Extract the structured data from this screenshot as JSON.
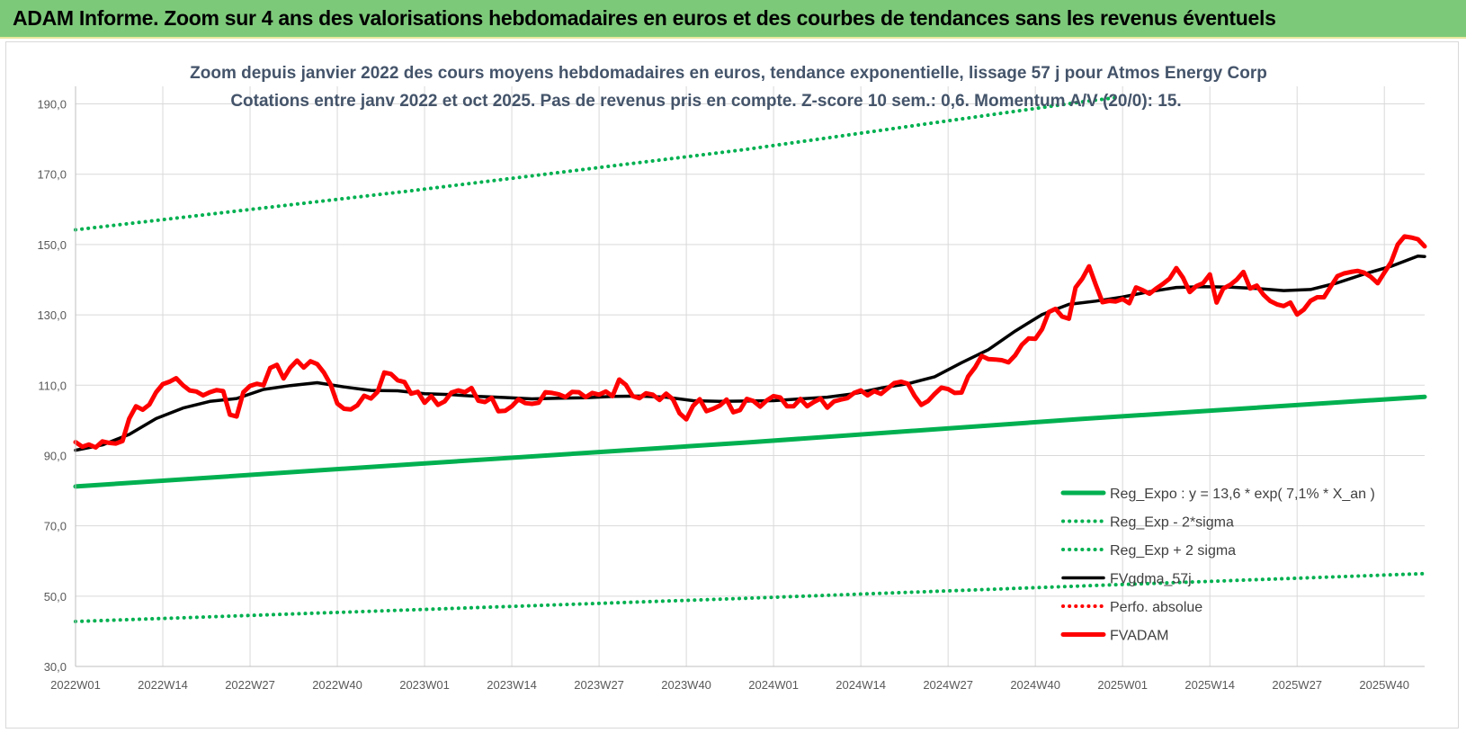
{
  "header": {
    "title": "ADAM Informe. Zoom sur 4 ans des valorisations hebdomadaires en euros et des courbes de tendances sans les revenus éventuels"
  },
  "colors": {
    "header_bg": "#7dc97a",
    "reg_expo": "#00b050",
    "fvgdma": "#000000",
    "perfo": "#ff0000",
    "fvadam": "#ff0000",
    "title_text": "#44546a"
  },
  "chart_data": {
    "type": "line",
    "title": "Zoom depuis janvier 2022 des cours moyens hebdomadaires en euros, tendance exponentielle, lissage 57 j pour Atmos Energy Corp",
    "subtitle": "Cotations entre janv 2022 et oct 2025. Pas de revenus pris en compte. Z-score 10 sem.: 0,6. Momentum A/V (20/0): 15.",
    "xlabel": "",
    "ylabel": "",
    "ylim": [
      30,
      195
    ],
    "yticks": [
      "30,0",
      "50,0",
      "70,0",
      "90,0",
      "110,0",
      "130,0",
      "150,0",
      "170,0",
      "190,0"
    ],
    "ytick_values": [
      30,
      50,
      70,
      90,
      110,
      130,
      150,
      170,
      190
    ],
    "x_tick_labels": [
      "2022W01",
      "2022W14",
      "2022W27",
      "2022W40",
      "2023W01",
      "2023W14",
      "2023W27",
      "2023W40",
      "2024W01",
      "2024W14",
      "2024W27",
      "2024W40",
      "2025W01",
      "2025W14",
      "2025W27",
      "2025W40"
    ],
    "x_tick_weeks": [
      0,
      13,
      26,
      39,
      52,
      65,
      78,
      91,
      104,
      117,
      130,
      143,
      156,
      169,
      182,
      195
    ],
    "x_max_week": 201,
    "grid": true,
    "legend_position": "bottom-right",
    "series": [
      {
        "name": "Reg_Expo : y = 13,6 * exp( 7,1% * X_an )",
        "style": "solid-thick",
        "color": "#00b050",
        "points": [
          [
            0,
            81.2
          ],
          [
            50,
            87.5
          ],
          [
            100,
            93.7
          ],
          [
            150,
            100.4
          ],
          [
            201,
            106.7
          ]
        ]
      },
      {
        "name": "Reg_Exp - 2*sigma",
        "style": "dotted",
        "color": "#00b050",
        "points": [
          [
            0,
            42.8
          ],
          [
            50,
            46.1
          ],
          [
            100,
            49.4
          ],
          [
            150,
            52.9
          ],
          [
            201,
            56.4
          ]
        ]
      },
      {
        "name": "Reg_Exp + 2 sigma",
        "style": "dotted",
        "color": "#00b050",
        "points": [
          [
            0,
            154.2
          ],
          [
            50,
            165.3
          ],
          [
            100,
            177.1
          ],
          [
            150,
            190.6
          ],
          [
            155,
            191.8
          ],
          [
            174,
            195.2
          ],
          [
            180,
            197.1
          ],
          [
            190,
            199.7
          ],
          [
            201,
            199.9
          ]
        ]
      },
      {
        "name": "FVgdma_57j",
        "style": "solid",
        "color": "#000000",
        "points": [
          [
            0,
            91.5
          ],
          [
            4,
            93
          ],
          [
            8,
            96
          ],
          [
            12,
            100.5
          ],
          [
            16,
            103.5
          ],
          [
            20,
            105.4
          ],
          [
            24,
            106.2
          ],
          [
            28,
            108.8
          ],
          [
            32,
            109.9
          ],
          [
            36,
            110.7
          ],
          [
            40,
            109.5
          ],
          [
            44,
            108.5
          ],
          [
            48,
            108.4
          ],
          [
            52,
            107.6
          ],
          [
            56,
            107.3
          ],
          [
            60,
            106.8
          ],
          [
            64,
            106.5
          ],
          [
            68,
            106.1
          ],
          [
            72,
            106.3
          ],
          [
            76,
            106.4
          ],
          [
            80,
            106.8
          ],
          [
            84,
            106.9
          ],
          [
            88,
            106.6
          ],
          [
            92,
            105.6
          ],
          [
            96,
            105.4
          ],
          [
            100,
            105.5
          ],
          [
            104,
            105.6
          ],
          [
            108,
            106.1
          ],
          [
            112,
            106.6
          ],
          [
            116,
            107.6
          ],
          [
            120,
            109.2
          ],
          [
            124,
            110.4
          ],
          [
            128,
            112.4
          ],
          [
            132,
            116.4
          ],
          [
            136,
            120.1
          ],
          [
            140,
            125.4
          ],
          [
            144,
            130.1
          ],
          [
            148,
            133.0
          ],
          [
            152,
            133.9
          ],
          [
            156,
            135.1
          ],
          [
            160,
            136.6
          ],
          [
            164,
            137.8
          ],
          [
            168,
            138.0
          ],
          [
            172,
            137.9
          ],
          [
            176,
            137.5
          ],
          [
            180,
            136.9
          ],
          [
            184,
            137.2
          ],
          [
            188,
            139.1
          ],
          [
            192,
            141.6
          ],
          [
            196,
            143.8
          ],
          [
            200,
            146.7
          ],
          [
            201,
            146.6
          ]
        ]
      },
      {
        "name": "Perfo. absolue",
        "style": "dotted",
        "color": "#ff0000",
        "points": []
      },
      {
        "name": "FVADAM",
        "style": "solid-thick",
        "color": "#ff0000",
        "points": [
          [
            0,
            93.8
          ],
          [
            1,
            92.5
          ],
          [
            2,
            93.1
          ],
          [
            3,
            92.3
          ],
          [
            4,
            94.0
          ],
          [
            5,
            93.6
          ],
          [
            6,
            93.4
          ],
          [
            7,
            94.1
          ],
          [
            8,
            100.5
          ],
          [
            9,
            104.0
          ],
          [
            10,
            103.0
          ],
          [
            11,
            104.5
          ],
          [
            12,
            108.0
          ],
          [
            13,
            110.3
          ],
          [
            14,
            111.0
          ],
          [
            15,
            112.0
          ],
          [
            16,
            110.0
          ],
          [
            17,
            108.5
          ],
          [
            18,
            108.2
          ],
          [
            19,
            107.1
          ],
          [
            20,
            108.0
          ],
          [
            21,
            108.6
          ],
          [
            22,
            108.3
          ],
          [
            23,
            101.6
          ],
          [
            24,
            101.1
          ],
          [
            25,
            108.0
          ],
          [
            26,
            109.8
          ],
          [
            27,
            110.4
          ],
          [
            28,
            110.0
          ],
          [
            29,
            114.9
          ],
          [
            30,
            115.8
          ],
          [
            31,
            111.9
          ],
          [
            32,
            115.0
          ],
          [
            33,
            117.0
          ],
          [
            34,
            115.0
          ],
          [
            35,
            116.8
          ],
          [
            36,
            116.0
          ],
          [
            37,
            113.6
          ],
          [
            38,
            110.2
          ],
          [
            39,
            104.8
          ],
          [
            40,
            103.3
          ],
          [
            41,
            103.1
          ],
          [
            42,
            104.3
          ],
          [
            43,
            107.0
          ],
          [
            44,
            106.2
          ],
          [
            45,
            108.1
          ],
          [
            46,
            113.6
          ],
          [
            47,
            113.2
          ],
          [
            48,
            111.4
          ],
          [
            49,
            110.9
          ],
          [
            50,
            107.6
          ],
          [
            51,
            108.1
          ],
          [
            52,
            105.0
          ],
          [
            53,
            106.9
          ],
          [
            54,
            104.4
          ],
          [
            55,
            105.4
          ],
          [
            56,
            107.9
          ],
          [
            57,
            108.5
          ],
          [
            58,
            108.0
          ],
          [
            59,
            109.2
          ],
          [
            60,
            105.6
          ],
          [
            61,
            105.2
          ],
          [
            62,
            106.4
          ],
          [
            63,
            102.6
          ],
          [
            64,
            102.7
          ],
          [
            65,
            104.0
          ],
          [
            66,
            106.0
          ],
          [
            67,
            104.9
          ],
          [
            68,
            104.7
          ],
          [
            69,
            105.0
          ],
          [
            70,
            108.0
          ],
          [
            71,
            107.8
          ],
          [
            72,
            107.4
          ],
          [
            73,
            106.6
          ],
          [
            74,
            108.1
          ],
          [
            75,
            108.0
          ],
          [
            76,
            106.6
          ],
          [
            77,
            107.8
          ],
          [
            78,
            107.3
          ],
          [
            79,
            108.2
          ],
          [
            80,
            106.9
          ],
          [
            81,
            111.6
          ],
          [
            82,
            110.1
          ],
          [
            83,
            106.9
          ],
          [
            84,
            106.3
          ],
          [
            85,
            107.7
          ],
          [
            86,
            107.3
          ],
          [
            87,
            105.8
          ],
          [
            88,
            107.6
          ],
          [
            89,
            106.0
          ],
          [
            90,
            102.0
          ],
          [
            91,
            100.3
          ],
          [
            92,
            104.1
          ],
          [
            93,
            106.0
          ],
          [
            94,
            102.6
          ],
          [
            95,
            103.3
          ],
          [
            96,
            104.2
          ],
          [
            97,
            105.9
          ],
          [
            98,
            102.3
          ],
          [
            99,
            102.9
          ],
          [
            100,
            106.1
          ],
          [
            101,
            105.5
          ],
          [
            102,
            103.9
          ],
          [
            103,
            105.7
          ],
          [
            104,
            106.9
          ],
          [
            105,
            106.5
          ],
          [
            106,
            104.0
          ],
          [
            107,
            104.0
          ],
          [
            108,
            106.1
          ],
          [
            109,
            104.0
          ],
          [
            110,
            105.2
          ],
          [
            111,
            106.2
          ],
          [
            112,
            103.6
          ],
          [
            113,
            105.4
          ],
          [
            114,
            105.9
          ],
          [
            115,
            106.3
          ],
          [
            116,
            107.8
          ],
          [
            117,
            108.5
          ],
          [
            118,
            107.1
          ],
          [
            119,
            108.3
          ],
          [
            120,
            107.5
          ],
          [
            121,
            109.1
          ],
          [
            122,
            110.6
          ],
          [
            123,
            111.0
          ],
          [
            124,
            110.4
          ],
          [
            125,
            107.0
          ],
          [
            126,
            104.4
          ],
          [
            127,
            105.5
          ],
          [
            128,
            107.5
          ],
          [
            129,
            109.3
          ],
          [
            130,
            108.9
          ],
          [
            131,
            107.8
          ],
          [
            132,
            107.9
          ],
          [
            133,
            112.5
          ],
          [
            134,
            115.0
          ],
          [
            135,
            118.3
          ],
          [
            136,
            117.4
          ],
          [
            137,
            117.3
          ],
          [
            138,
            117.1
          ],
          [
            139,
            116.5
          ],
          [
            140,
            118.5
          ],
          [
            141,
            121.5
          ],
          [
            142,
            123.3
          ],
          [
            143,
            123.2
          ],
          [
            144,
            125.9
          ],
          [
            145,
            130.8
          ],
          [
            146,
            131.7
          ],
          [
            147,
            129.5
          ],
          [
            148,
            128.9
          ],
          [
            149,
            137.8
          ],
          [
            150,
            140.3
          ],
          [
            151,
            143.8
          ],
          [
            152,
            138.6
          ],
          [
            153,
            133.6
          ],
          [
            154,
            134.0
          ],
          [
            155,
            133.8
          ],
          [
            156,
            134.5
          ],
          [
            157,
            133.3
          ],
          [
            158,
            137.8
          ],
          [
            159,
            137.0
          ],
          [
            160,
            136.0
          ],
          [
            161,
            137.5
          ],
          [
            162,
            138.8
          ],
          [
            163,
            140.3
          ],
          [
            164,
            143.3
          ],
          [
            165,
            140.6
          ],
          [
            166,
            136.5
          ],
          [
            167,
            138.2
          ],
          [
            168,
            139.0
          ],
          [
            169,
            141.5
          ],
          [
            170,
            133.5
          ],
          [
            171,
            137.5
          ],
          [
            172,
            138.5
          ],
          [
            173,
            140.0
          ],
          [
            174,
            142.2
          ],
          [
            175,
            137.5
          ],
          [
            176,
            138.3
          ],
          [
            177,
            135.7
          ],
          [
            178,
            133.9
          ],
          [
            179,
            133.0
          ],
          [
            180,
            132.5
          ],
          [
            181,
            133.5
          ],
          [
            182,
            130.1
          ],
          [
            183,
            131.5
          ],
          [
            184,
            134.0
          ],
          [
            185,
            135.0
          ],
          [
            186,
            135.0
          ],
          [
            187,
            138.0
          ],
          [
            188,
            141.0
          ],
          [
            189,
            141.8
          ],
          [
            190,
            142.2
          ],
          [
            191,
            142.5
          ],
          [
            192,
            142.0
          ],
          [
            193,
            140.8
          ],
          [
            194,
            139.0
          ],
          [
            195,
            142.0
          ],
          [
            196,
            145.0
          ],
          [
            197,
            150.0
          ],
          [
            198,
            152.3
          ],
          [
            199,
            152.0
          ],
          [
            200,
            151.5
          ],
          [
            201,
            149.5
          ]
        ]
      }
    ]
  }
}
